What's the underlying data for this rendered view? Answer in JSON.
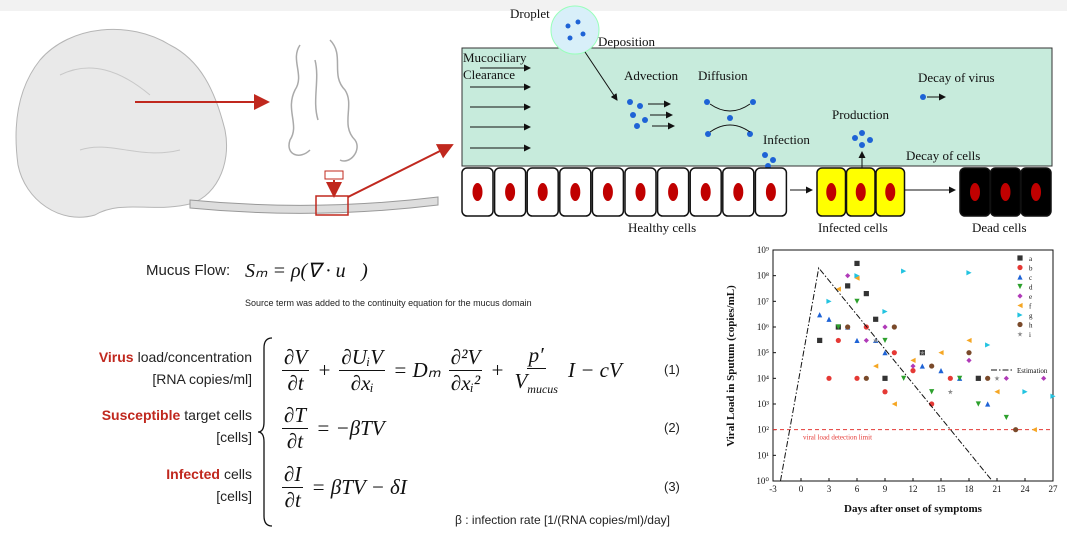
{
  "diagram": {
    "droplet": "Droplet",
    "deposition": "Deposition",
    "clearance": [
      "Mucociliary",
      "Clearance"
    ],
    "advection": "Advection",
    "diffusion": "Diffusion",
    "decay_virus": "Decay of virus",
    "infection": "Infection",
    "production": "Production",
    "decay_cells": "Decay of cells",
    "healthy": "Healthy cells",
    "infected": "Infected cells",
    "dead": "Dead cells"
  },
  "equations": {
    "mucus_label": "Mucus Flow:",
    "mucus_eq": "Sₘ = ρ(∇ · u⃗)",
    "mucus_note": "Source term was added to the continuity equation for the mucus domain",
    "rows": [
      {
        "highlight": "Virus",
        "rest": "load/concentration",
        "units": "[RNA copies/ml]",
        "number": "(1)",
        "parts": [
          {
            "num": "∂V",
            "den": "∂t"
          },
          "+",
          {
            "num": "∂UᵢV",
            "den": "∂xᵢ"
          },
          "= Dₘ",
          {
            "num": "∂²V",
            "den": "∂xᵢ²"
          },
          "+",
          {
            "num": "p′",
            "den": "V",
            "den_sub": "mucus"
          },
          "I − cV"
        ]
      },
      {
        "highlight": "Susceptible",
        "rest": "target cells",
        "units": "[cells]",
        "number": "(2)",
        "parts": [
          {
            "num": "∂T",
            "den": "∂t"
          },
          "= −βTV"
        ]
      },
      {
        "highlight": "Infected",
        "rest": "cells",
        "units": "[cells]",
        "number": "(3)",
        "parts": [
          {
            "num": "∂I",
            "den": "∂t"
          },
          "= βTV − δI"
        ]
      }
    ],
    "beta_note": "β : infection rate [1/(RNA copies/ml)/day]"
  },
  "chart_data": {
    "type": "scatter",
    "xlabel": "Days after onset of symptoms",
    "ylabel": "Viral Load in Sputum (copies/mL)",
    "log_y": true,
    "xlim": [
      -3,
      27
    ],
    "xticks": [
      -3,
      0,
      3,
      6,
      9,
      12,
      15,
      18,
      21,
      24,
      27
    ],
    "ylim": [
      1,
      1000000000
    ],
    "yticks": [
      {
        "value": 1,
        "label": "10⁰"
      },
      {
        "value": 10,
        "label": "10¹"
      },
      {
        "value": 100,
        "label": "10²"
      },
      {
        "value": 1000,
        "label": "10³"
      },
      {
        "value": 10000,
        "label": "10⁴"
      },
      {
        "value": 100000,
        "label": "10⁵"
      },
      {
        "value": 1000000,
        "label": "10⁶"
      },
      {
        "value": 10000000,
        "label": "10⁷"
      },
      {
        "value": 100000000,
        "label": "10⁸"
      },
      {
        "value": 1000000000,
        "label": "10⁹"
      }
    ],
    "legend": "top-right",
    "threshold": {
      "value": 100,
      "label": "viral load detection limit",
      "color": "#e53935"
    },
    "series": [
      {
        "name": "a",
        "color": "#333333",
        "marker": "square",
        "x": [
          2,
          4,
          5,
          6,
          7,
          8,
          9,
          13,
          19
        ],
        "values": [
          300000,
          1000000,
          40000000,
          300000000,
          20000000,
          2000000,
          10000,
          100000,
          10000
        ]
      },
      {
        "name": "b",
        "color": "#e53935",
        "marker": "circle",
        "x": [
          3,
          4,
          6,
          7,
          9,
          10,
          12,
          14,
          16
        ],
        "values": [
          10000,
          300000,
          10000,
          1000000,
          3000,
          100000,
          20000,
          1000,
          10000
        ]
      },
      {
        "name": "c",
        "color": "#1e63d6",
        "marker": "triangle",
        "x": [
          2,
          3,
          5,
          6,
          8,
          9,
          13,
          15,
          17,
          20
        ],
        "values": [
          3000000,
          2000000,
          1000000,
          300000,
          300000,
          100000,
          30000,
          20000,
          10000,
          1000
        ]
      },
      {
        "name": "d",
        "color": "#2ca02c",
        "marker": "triangle-down",
        "x": [
          4,
          6,
          9,
          11,
          14,
          17,
          19,
          22
        ],
        "values": [
          1000000,
          10000000,
          300000,
          10000,
          3000,
          10000,
          1000,
          300
        ]
      },
      {
        "name": "e",
        "color": "#b03ab8",
        "marker": "diamond",
        "x": [
          5,
          7,
          9,
          12,
          18,
          22,
          26
        ],
        "values": [
          100000000,
          300000,
          1000000,
          30000,
          50000,
          10000,
          10000
        ]
      },
      {
        "name": "f",
        "color": "#f5a623",
        "marker": "triangle-left",
        "x": [
          4,
          6,
          8,
          10,
          12,
          15,
          18,
          21,
          25
        ],
        "values": [
          30000000,
          80000000,
          30000,
          1000,
          50000,
          100000,
          300000,
          3000,
          100
        ]
      },
      {
        "name": "g",
        "color": "#22c3e0",
        "marker": "triangle-right",
        "x": [
          3,
          6,
          9,
          11,
          18,
          20,
          24,
          27
        ],
        "values": [
          10000000,
          100000000,
          4000000,
          150000000,
          130000000,
          200000,
          3000,
          2000
        ]
      },
      {
        "name": "h",
        "color": "#7a4a2a",
        "marker": "hexagon",
        "x": [
          5,
          7,
          10,
          14,
          18,
          20,
          23
        ],
        "values": [
          1000000,
          10000,
          1000000,
          30000,
          100000,
          10000,
          100
        ]
      },
      {
        "name": "i",
        "color": "#8a8a8a",
        "marker": "star",
        "x": [
          8,
          13,
          16,
          21
        ],
        "values": [
          300000,
          100000,
          3000,
          10000
        ]
      },
      {
        "name": "Estimation",
        "color": "#111111",
        "marker": "line",
        "line_style": "dash-dot",
        "x": [
          -2.2,
          1.9,
          20.5
        ],
        "values": [
          1,
          200000000,
          1
        ]
      }
    ]
  }
}
